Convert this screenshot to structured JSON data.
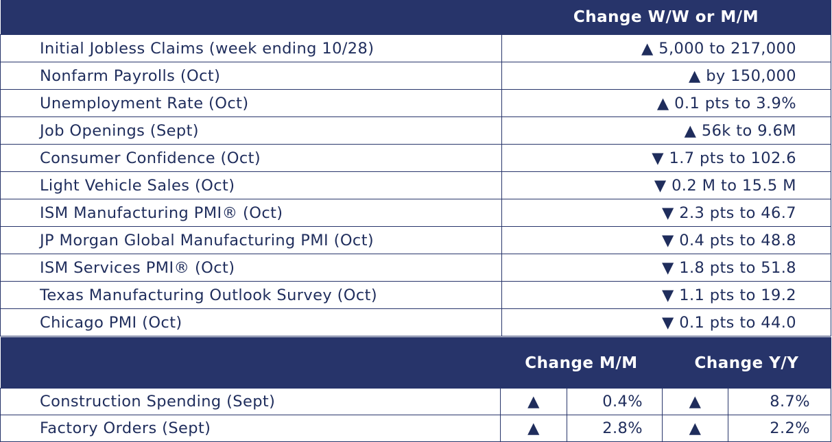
{
  "weekly_table": {
    "header": "Change W/W or M/M",
    "rows": [
      {
        "label": "Initial Jobless Claims (week ending 10/28)",
        "value": "▲ 5,000 to 217,000"
      },
      {
        "label": "Nonfarm Payrolls (Oct)",
        "value": "▲ by 150,000"
      },
      {
        "label": "Unemployment Rate (Oct)",
        "value": "▲ 0.1 pts to 3.9%"
      },
      {
        "label": "Job Openings (Sept)",
        "value": "▲ 56k to 9.6M"
      },
      {
        "label": "Consumer Confidence (Oct)",
        "value": "▼ 1.7 pts to 102.6"
      },
      {
        "label": "Light Vehicle Sales (Oct)",
        "value": "▼ 0.2 M to 15.5 M"
      },
      {
        "label": "ISM Manufacturing PMI® (Oct)",
        "value": "▼ 2.3 pts to 46.7"
      },
      {
        "label": "JP Morgan Global Manufacturing PMI (Oct)",
        "value": "▼ 0.4 pts to 48.8"
      },
      {
        "label": "ISM Services PMI® (Oct)",
        "value": "▼ 1.8 pts to 51.8"
      },
      {
        "label": "Texas Manufacturing Outlook Survey (Oct)",
        "value": "▼ 1.1 pts to 19.2"
      },
      {
        "label": "Chicago PMI (Oct)",
        "value": "▼ 0.1 pts to 44.0"
      }
    ]
  },
  "monthly_table": {
    "header_mm": "Change M/M",
    "header_yy": "Change Y/Y",
    "rows": [
      {
        "label": "Construction Spending (Sept)",
        "mm_arrow": "▲",
        "mm_value": "0.4%",
        "yy_arrow": "▲",
        "yy_value": "8.7%"
      },
      {
        "label": "Factory Orders (Sept)",
        "mm_arrow": "▲",
        "mm_value": "2.8%",
        "yy_arrow": "▲",
        "yy_value": "2.2%"
      }
    ]
  }
}
